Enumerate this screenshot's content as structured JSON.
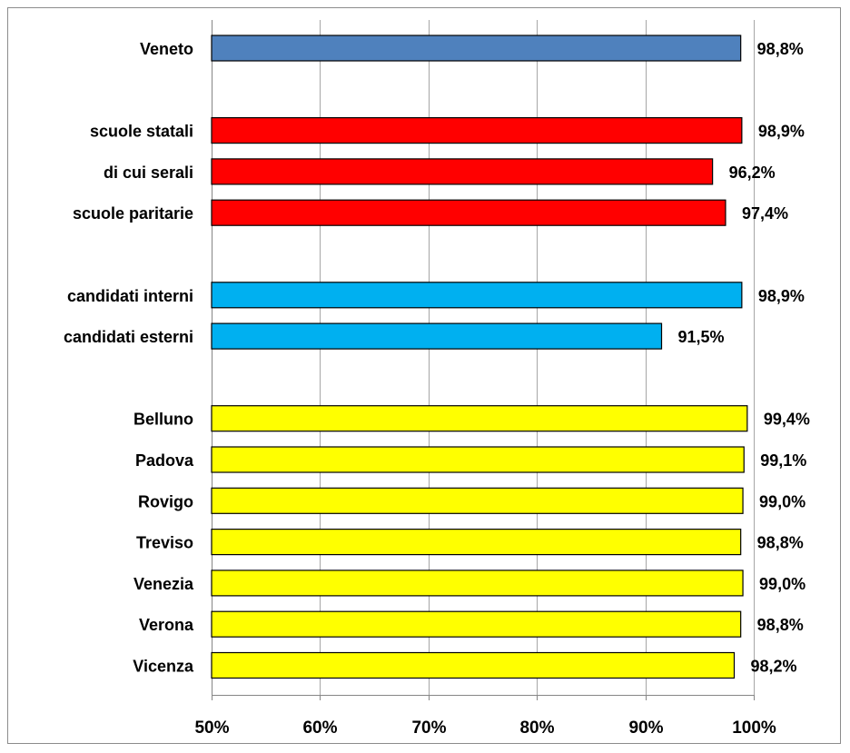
{
  "chart_data": {
    "type": "bar",
    "orientation": "horizontal",
    "title": "",
    "xlabel": "",
    "ylabel": "",
    "xlim": [
      0.5,
      1.0
    ],
    "x_ticks": [
      0.5,
      0.6,
      0.7,
      0.8,
      0.9,
      1.0
    ],
    "x_tick_labels": [
      "50%",
      "60%",
      "70%",
      "80%",
      "90%",
      "100%"
    ],
    "grid": true,
    "legend": "none",
    "colors": {
      "region": "#4f81bd",
      "school_type": "#ff0000",
      "candidates": "#00b0f0",
      "province": "#ffff00"
    },
    "groups": [
      {
        "key": "region",
        "items": [
          {
            "label": "Veneto",
            "value": 0.988,
            "value_label": "98,8%"
          }
        ]
      },
      {
        "key": "school_type",
        "items": [
          {
            "label": "scuole statali",
            "value": 0.989,
            "value_label": "98,9%"
          },
          {
            "label": "di cui serali",
            "value": 0.962,
            "value_label": "96,2%"
          },
          {
            "label": "scuole paritarie",
            "value": 0.974,
            "value_label": "97,4%"
          }
        ]
      },
      {
        "key": "candidates",
        "items": [
          {
            "label": "candidati interni",
            "value": 0.989,
            "value_label": "98,9%"
          },
          {
            "label": "candidati esterni",
            "value": 0.915,
            "value_label": "91,5%"
          }
        ]
      },
      {
        "key": "province",
        "items": [
          {
            "label": "Belluno",
            "value": 0.994,
            "value_label": "99,4%"
          },
          {
            "label": "Padova",
            "value": 0.991,
            "value_label": "99,1%"
          },
          {
            "label": "Rovigo",
            "value": 0.99,
            "value_label": "99,0%"
          },
          {
            "label": "Treviso",
            "value": 0.988,
            "value_label": "98,8%"
          },
          {
            "label": "Venezia",
            "value": 0.99,
            "value_label": "99,0%"
          },
          {
            "label": "Verona",
            "value": 0.988,
            "value_label": "98,8%"
          },
          {
            "label": "Vicenza",
            "value": 0.982,
            "value_label": "98,2%"
          }
        ]
      }
    ]
  }
}
